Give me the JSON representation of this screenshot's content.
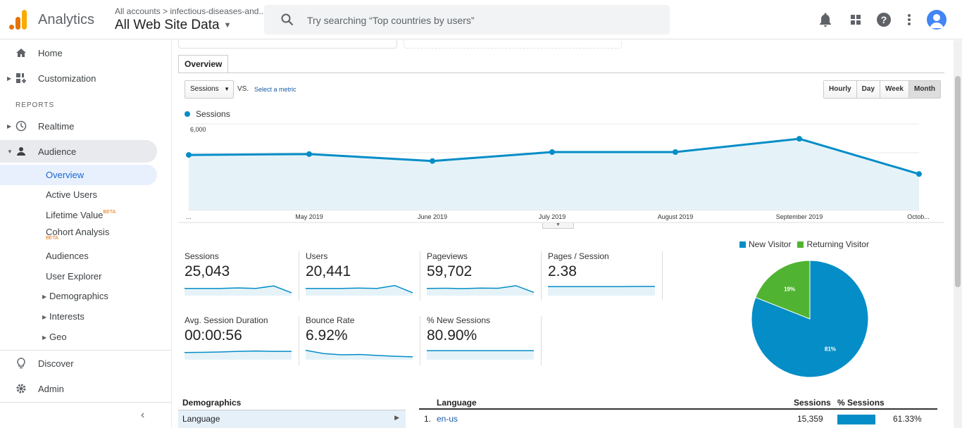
{
  "app": {
    "name": "Analytics",
    "account_path": "All accounts > infectious-diseases-and...",
    "property": "All Web Site Data"
  },
  "search": {
    "placeholder": "Try searching “Top countries by users”"
  },
  "sidebar": {
    "home": "Home",
    "customization": "Customization",
    "reports_header": "REPORTS",
    "realtime": "Realtime",
    "audience": "Audience",
    "audience_items": {
      "overview": "Overview",
      "active_users": "Active Users",
      "lifetime_value": "Lifetime Value",
      "cohort_analysis": "Cohort Analysis",
      "audiences": "Audiences",
      "user_explorer": "User Explorer",
      "demographics": "Demographics",
      "interests": "Interests",
      "geo": "Geo"
    },
    "beta": "BETA",
    "discover": "Discover",
    "admin": "Admin"
  },
  "main": {
    "tab": "Overview",
    "metric_select": "Sessions",
    "vs": "VS.",
    "select_metric": "Select a metric",
    "periods": [
      "Hourly",
      "Day",
      "Week",
      "Month"
    ],
    "active_period": "Month",
    "legend": "Sessions"
  },
  "chart_data": {
    "type": "area",
    "series": [
      {
        "name": "Sessions",
        "values": [
          3800,
          3860,
          3380,
          4000,
          4000,
          4920,
          2480
        ]
      }
    ],
    "x": [
      "...",
      "May 2019",
      "June 2019",
      "July 2019",
      "August 2019",
      "September 2019",
      "Octob..."
    ],
    "y_ticks": [
      "6,000",
      "4,000",
      "2,000"
    ],
    "ylim": [
      0,
      6000
    ],
    "grid": true,
    "color": "#058dc7"
  },
  "stats": [
    {
      "name": "Sessions",
      "value": "25,043",
      "spark": [
        4,
        4,
        4,
        4.3,
        4,
        5.4,
        1.6
      ]
    },
    {
      "name": "Users",
      "value": "20,441",
      "spark": [
        4,
        4,
        4,
        4.2,
        4,
        5.6,
        1.6
      ]
    },
    {
      "name": "Pageviews",
      "value": "59,702",
      "spark": [
        4,
        4.1,
        3.9,
        4.2,
        4.1,
        5.5,
        1.8
      ]
    },
    {
      "name": "Pages / Session",
      "value": "2.38",
      "spark": [
        5,
        5,
        5,
        5,
        5,
        5.1,
        5.1
      ]
    },
    {
      "name": "Avg. Session Duration",
      "value": "00:00:56",
      "spark": [
        4,
        4.1,
        4.3,
        4.6,
        4.8,
        4.6,
        4.6
      ]
    },
    {
      "name": "Bounce Rate",
      "value": "6.92%",
      "spark": [
        5.2,
        3.4,
        2.7,
        2.9,
        2.4,
        1.9,
        1.6
      ]
    },
    {
      "name": "% New Sessions",
      "value": "80.90%",
      "spark": [
        5,
        5,
        5,
        5,
        5,
        5,
        5
      ]
    }
  ],
  "pie": {
    "legend": [
      {
        "name": "New Visitor",
        "color": "#058dc7"
      },
      {
        "name": "Returning Visitor",
        "color": "#50b432"
      }
    ],
    "slices": [
      {
        "label": "81%",
        "value": 81,
        "color": "#058dc7"
      },
      {
        "label": "19%",
        "value": 19,
        "color": "#50b432"
      }
    ]
  },
  "bottom": {
    "demographics_header": "Demographics",
    "demographics_row": "Language",
    "language_header": "Language",
    "sessions_header": "Sessions",
    "pct_sessions_header": "% Sessions",
    "rows": [
      {
        "rank": "1.",
        "language": "en-us",
        "sessions": "15,359",
        "pct": "61.33%",
        "pct_value": 61.33
      }
    ]
  }
}
